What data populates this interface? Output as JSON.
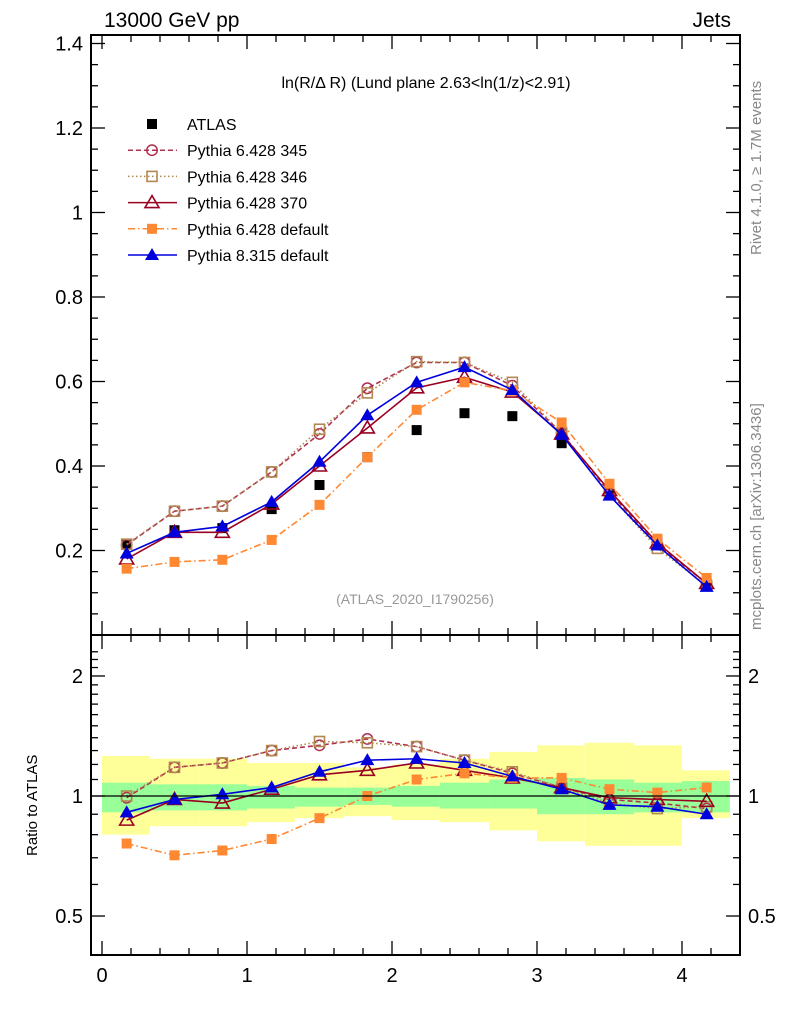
{
  "chart_data": [
    {
      "type": "line",
      "panel": "main",
      "title": "ln(R/Δ R) (Lund plane 2.63<ln(1/z)<2.91)",
      "top_left_label": "13000 GeV pp",
      "top_right_label": "Jets",
      "watermark": "(ATLAS_2020_I1790256)",
      "side_label_top": "Rivet 4.1.0, ≥ 1.7M events",
      "side_label_bottom": "mcplots.cern.ch [arXiv:1306.3436]",
      "xlabel": "",
      "ylabel": "",
      "xlim": [
        -0.076,
        4.4
      ],
      "ylim": [
        0,
        1.4
      ],
      "xticks": [
        "0",
        "1",
        "2",
        "3",
        "4"
      ],
      "yticks": [
        "0",
        "0.2",
        "0.4",
        "0.6",
        "0.8",
        "1",
        "1.2",
        "1.4"
      ],
      "legend_position": "top-left",
      "x": [
        0.17,
        0.5,
        0.83,
        1.17,
        1.5,
        1.83,
        2.17,
        2.5,
        2.83,
        3.17,
        3.5,
        3.83,
        4.17
      ],
      "series": [
        {
          "name": "ATLAS",
          "color": "#000000",
          "marker": "square-filled",
          "line": "none",
          "values": [
            0.215,
            0.248,
            0.253,
            0.298,
            0.355,
            0.421,
            0.485,
            0.525,
            0.518,
            0.454,
            0.346,
            0.222,
            0.121
          ]
        },
        {
          "name": "Pythia 6.428 345",
          "color": "#b03050",
          "marker": "circle-open",
          "line": "dashed",
          "values": [
            0.213,
            0.293,
            0.305,
            0.386,
            0.476,
            0.584,
            0.645,
            0.645,
            0.59,
            0.478,
            0.338,
            0.214,
            0.122
          ]
        },
        {
          "name": "Pythia 6.428 346",
          "color": "#b08850",
          "marker": "square-open",
          "line": "dotted",
          "values": [
            0.215,
            0.293,
            0.305,
            0.386,
            0.487,
            0.573,
            0.647,
            0.645,
            0.598,
            0.478,
            0.332,
            0.205,
            0.117
          ]
        },
        {
          "name": "Pythia 6.428 370",
          "color": "#990022",
          "marker": "triangle-open",
          "line": "solid",
          "values": [
            0.18,
            0.243,
            0.243,
            0.31,
            0.4,
            0.49,
            0.585,
            0.61,
            0.575,
            0.476,
            0.342,
            0.218,
            0.122
          ]
        },
        {
          "name": "Pythia 6.428 default",
          "color": "#ff8833",
          "marker": "square-filled",
          "line": "dashdot",
          "values": [
            0.157,
            0.173,
            0.178,
            0.225,
            0.308,
            0.421,
            0.533,
            0.598,
            0.578,
            0.503,
            0.358,
            0.228,
            0.135
          ]
        },
        {
          "name": "Pythia 8.315 default",
          "color": "#0000dd",
          "marker": "triangle-filled",
          "line": "solid",
          "values": [
            0.193,
            0.243,
            0.257,
            0.315,
            0.41,
            0.52,
            0.598,
            0.634,
            0.58,
            0.474,
            0.33,
            0.212,
            0.114
          ]
        }
      ]
    },
    {
      "type": "line",
      "panel": "ratio",
      "ylabel": "Ratio to ATLAS",
      "yscale": "log",
      "ylim": [
        0.4,
        2.4
      ],
      "yticks": [
        "0.5",
        "1",
        "2"
      ],
      "xticks": [
        "0",
        "1",
        "2",
        "3",
        "4"
      ],
      "reference_line": 1,
      "bands": {
        "bin_edges": [
          0,
          0.33,
          0.67,
          1.0,
          1.33,
          1.67,
          2.0,
          2.33,
          2.67,
          3.0,
          3.33,
          3.67,
          4.0,
          4.33
        ],
        "inner_green": {
          "color": "#99ff99",
          "lower": [
            0.91,
            0.92,
            0.92,
            0.93,
            0.94,
            0.95,
            0.94,
            0.93,
            0.93,
            0.9,
            0.9,
            0.91,
            0.91
          ],
          "upper": [
            1.08,
            1.07,
            1.07,
            1.06,
            1.05,
            1.05,
            1.06,
            1.08,
            1.1,
            1.11,
            1.1,
            1.08,
            1.09
          ]
        },
        "outer_yellow": {
          "color": "#ffff99",
          "lower": [
            0.8,
            0.84,
            0.84,
            0.86,
            0.88,
            0.89,
            0.87,
            0.86,
            0.82,
            0.77,
            0.75,
            0.75,
            0.88
          ],
          "upper": [
            1.26,
            1.24,
            1.24,
            1.21,
            1.21,
            1.18,
            1.2,
            1.24,
            1.29,
            1.34,
            1.36,
            1.34,
            1.16
          ]
        }
      },
      "series": [
        {
          "name": "Pythia 6.428 345",
          "values": [
            0.99,
            1.18,
            1.21,
            1.3,
            1.34,
            1.39,
            1.33,
            1.23,
            1.14,
            1.05,
            0.98,
            0.96,
            0.93
          ]
        },
        {
          "name": "Pythia 6.428 346",
          "values": [
            1.0,
            1.18,
            1.21,
            1.3,
            1.37,
            1.36,
            1.33,
            1.23,
            1.15,
            1.05,
            0.96,
            0.93,
            0.94
          ]
        },
        {
          "name": "Pythia 6.428 370",
          "values": [
            0.87,
            0.98,
            0.96,
            1.04,
            1.13,
            1.16,
            1.21,
            1.16,
            1.11,
            1.05,
            0.99,
            0.98,
            0.97
          ]
        },
        {
          "name": "Pythia 6.428 default",
          "values": [
            0.76,
            0.71,
            0.73,
            0.78,
            0.88,
            1.0,
            1.1,
            1.14,
            1.11,
            1.11,
            1.04,
            1.02,
            1.05
          ]
        },
        {
          "name": "Pythia 8.315 default",
          "values": [
            0.91,
            0.98,
            1.01,
            1.05,
            1.15,
            1.23,
            1.24,
            1.21,
            1.12,
            1.04,
            0.95,
            0.94,
            0.9
          ]
        }
      ]
    }
  ]
}
